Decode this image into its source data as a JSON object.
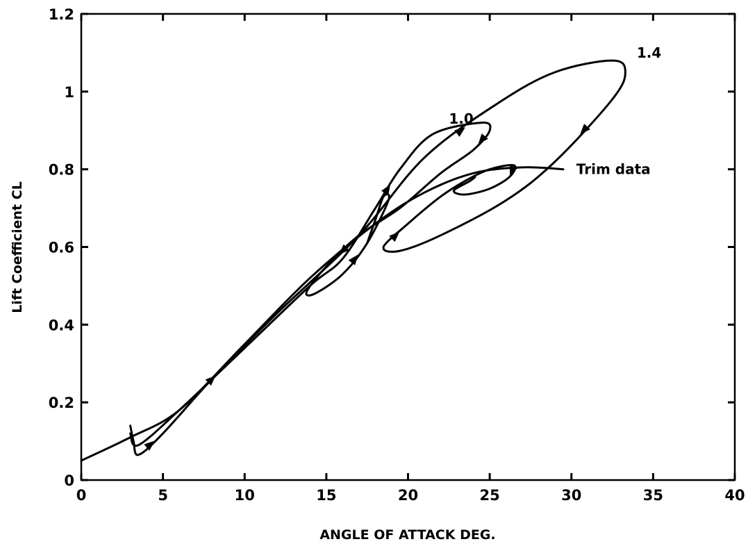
{
  "chart_data": {
    "type": "line",
    "title": "",
    "xlabel": "ANGLE OF ATTACK    DEG.",
    "ylabel": "Lift Coefficient CL",
    "xlim": [
      0,
      40
    ],
    "ylim": [
      0,
      1.2
    ],
    "xticks": [
      0,
      5,
      10,
      15,
      20,
      25,
      30,
      35,
      40
    ],
    "yticks": [
      0,
      0.2,
      0.4,
      0.6,
      0.8,
      1.0,
      1.2
    ],
    "xtick_labels": [
      "0",
      "5",
      "10",
      "15",
      "20",
      "25",
      "30",
      "35",
      "40"
    ],
    "ytick_labels": [
      "0",
      "0.2",
      "0.4",
      "0.6",
      "0.8",
      "1",
      "1.2"
    ],
    "grid": false,
    "legend": "none",
    "annotations": [
      {
        "text": "1.4",
        "x": 34.0,
        "y": 1.1
      },
      {
        "text": "1.0",
        "x": 22.5,
        "y": 0.93
      },
      {
        "text": "Trim data",
        "x": 30.3,
        "y": 0.8
      }
    ],
    "series": [
      {
        "label_ref": "Trim data",
        "values": [
          [
            0,
            0.05
          ],
          [
            3,
            0.11
          ],
          [
            6,
            0.18
          ],
          [
            10,
            0.35
          ],
          [
            14,
            0.52
          ],
          [
            18,
            0.66
          ],
          [
            21,
            0.74
          ],
          [
            24,
            0.79
          ],
          [
            27,
            0.805
          ],
          [
            29.5,
            0.8
          ]
        ]
      },
      {
        "label_ref": "1.4",
        "values": [
          [
            3,
            0.14
          ],
          [
            3.2,
            0.1
          ],
          [
            3.5,
            0.065
          ],
          [
            5,
            0.12
          ],
          [
            8,
            0.26
          ],
          [
            12,
            0.43
          ],
          [
            17,
            0.63
          ],
          [
            21,
            0.83
          ],
          [
            25.5,
            0.97
          ],
          [
            29,
            1.05
          ],
          [
            32.5,
            1.08
          ],
          [
            33.3,
            1.05
          ],
          [
            32.5,
            0.98
          ],
          [
            29,
            0.82
          ],
          [
            26,
            0.72
          ],
          [
            22,
            0.63
          ],
          [
            19.5,
            0.59
          ],
          [
            18.5,
            0.6
          ],
          [
            20,
            0.66
          ],
          [
            22,
            0.73
          ],
          [
            23.5,
            0.77
          ],
          [
            25,
            0.8
          ],
          [
            26.5,
            0.81
          ],
          [
            26.2,
            0.78
          ],
          [
            25,
            0.75
          ],
          [
            23.5,
            0.735
          ],
          [
            22.8,
            0.745
          ],
          [
            23.8,
            0.77
          ],
          [
            24.1,
            0.78
          ]
        ]
      },
      {
        "label_ref": "1.0",
        "values": [
          [
            3,
            0.12
          ],
          [
            3.5,
            0.09
          ],
          [
            6,
            0.18
          ],
          [
            10,
            0.34
          ],
          [
            14,
            0.5
          ],
          [
            16,
            0.57
          ],
          [
            18,
            0.7
          ],
          [
            19.5,
            0.8
          ],
          [
            21.5,
            0.89
          ],
          [
            24.5,
            0.92
          ],
          [
            25,
            0.9
          ],
          [
            24,
            0.85
          ],
          [
            22,
            0.79
          ],
          [
            19.5,
            0.7
          ],
          [
            17,
            0.63
          ],
          [
            15,
            0.55
          ],
          [
            13.8,
            0.485
          ],
          [
            14.3,
            0.48
          ],
          [
            16,
            0.53
          ],
          [
            17.5,
            0.61
          ],
          [
            18.8,
            0.72
          ],
          [
            18.5,
            0.73
          ],
          [
            18,
            0.67
          ],
          [
            17.5,
            0.61
          ]
        ]
      }
    ]
  }
}
